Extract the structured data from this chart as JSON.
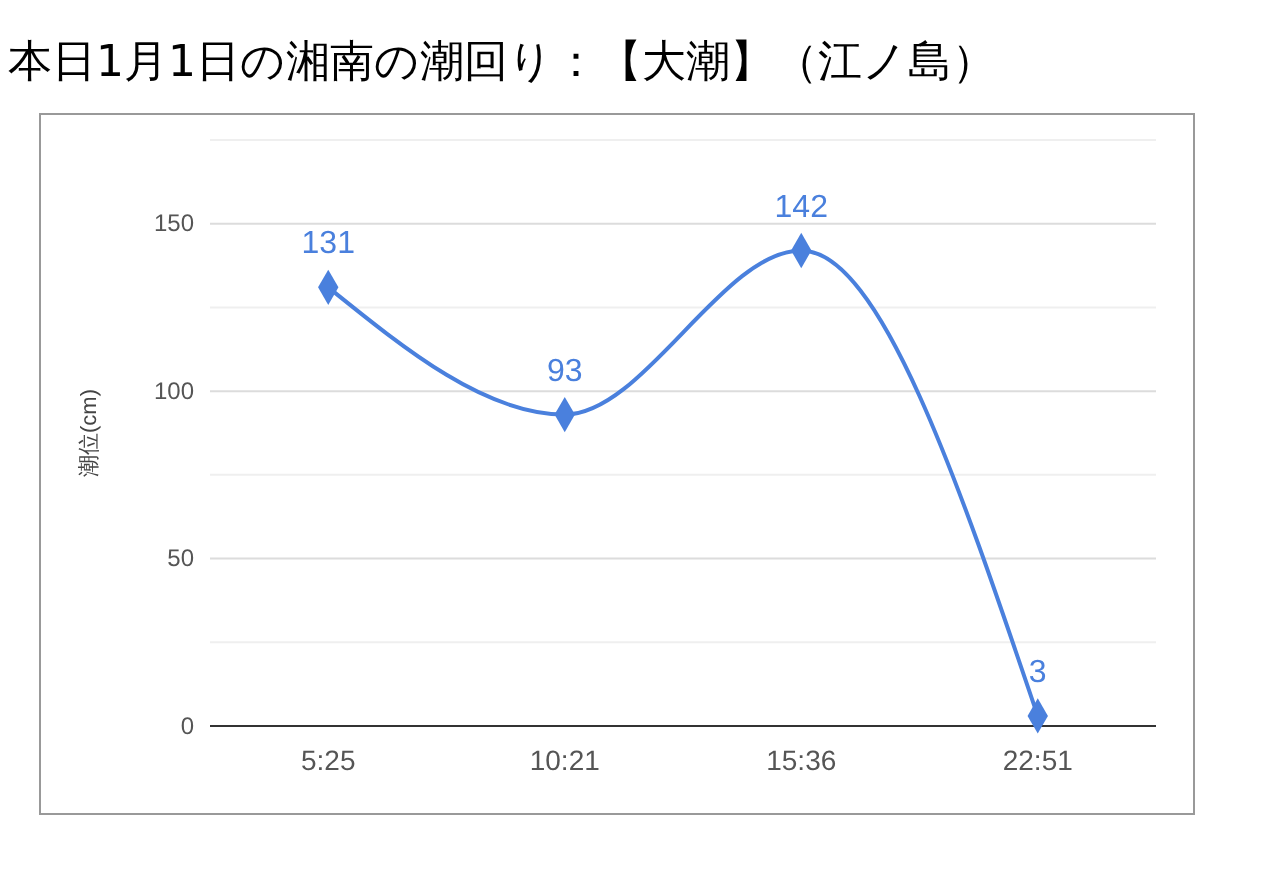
{
  "chart_data": {
    "type": "line",
    "title": "本日1月1日の湘南の潮回り：【大潮】（江ノ島）",
    "ylabel": "潮位(cm)",
    "categories": [
      "5:25",
      "10:21",
      "15:36",
      "22:51"
    ],
    "series": [
      {
        "color": "#4a80dd",
        "values": [
          131,
          93,
          142,
          3
        ]
      }
    ],
    "ylim": [
      0,
      175
    ],
    "yticks": [
      0,
      {
        "value": 25,
        "label": null
      },
      50,
      {
        "value": 75,
        "label": null
      },
      100,
      {
        "value": 125,
        "label": null
      },
      150,
      {
        "value": 175,
        "label": null
      }
    ],
    "grid": "y",
    "marker": "diamond",
    "line_style": "solid",
    "data_labels": true
  }
}
